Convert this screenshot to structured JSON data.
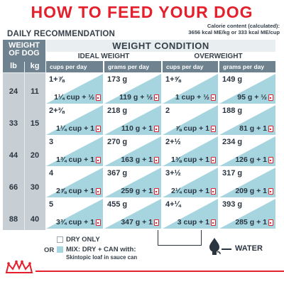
{
  "title": "HOW TO FEED YOUR DOG",
  "daily_recommendation": "DAILY RECOMMENDATION",
  "calorie": {
    "line1": "Calorie content (calculated):",
    "line2": "3656 kcal ME/kg or 333 kcal ME/cup"
  },
  "weight_panel": {
    "header_line1": "WEIGHT",
    "header_line2": "OF DOG",
    "unit_lb": "lb",
    "unit_kg": "kg",
    "rows": [
      {
        "lb": "24",
        "kg": "11"
      },
      {
        "lb": "33",
        "kg": "15"
      },
      {
        "lb": "44",
        "kg": "20"
      },
      {
        "lb": "66",
        "kg": "30"
      },
      {
        "lb": "88",
        "kg": "40"
      }
    ]
  },
  "weight_condition": "WEIGHT CONDITION",
  "groups": {
    "ideal": "IDEAL WEIGHT",
    "overweight": "OVERWEIGHT"
  },
  "column_headers": {
    "ideal_cups": "cups per day",
    "ideal_grams": "grams per day",
    "over_cups": "cups per day",
    "over_grams": "grams per day"
  },
  "rows": [
    {
      "ideal_cups_dry": "1+⅞",
      "ideal_cups_mix": "1¼ cup + ½",
      "ideal_grams_dry": "173 g",
      "ideal_grams_mix": "119 g + ½",
      "over_cups_dry": "1+⅝",
      "over_cups_mix": "1 cup + ½",
      "over_grams_dry": "149 g",
      "over_grams_mix": "95 g + ½"
    },
    {
      "ideal_cups_dry": "2+⅜",
      "ideal_cups_mix": "1¼ cup + 1",
      "ideal_grams_dry": "218 g",
      "ideal_grams_mix": "110 g + 1",
      "over_cups_dry": "2",
      "over_cups_mix": "⅞ cup + 1",
      "over_grams_dry": "188 g",
      "over_grams_mix": "81 g + 1"
    },
    {
      "ideal_cups_dry": "3",
      "ideal_cups_mix": "1¾ cup + 1",
      "ideal_grams_dry": "270 g",
      "ideal_grams_mix": "163 g + 1",
      "over_cups_dry": "2+½",
      "over_cups_mix": "1⅜ cup + 1",
      "over_grams_dry": "234 g",
      "over_grams_mix": "126 g + 1"
    },
    {
      "ideal_cups_dry": "4",
      "ideal_cups_mix": "2⅞ cup + 1",
      "ideal_grams_dry": "367 g",
      "ideal_grams_mix": "259 g + 1",
      "over_cups_dry": "3+½",
      "over_cups_mix": "2¼ cup + 1",
      "over_grams_dry": "317 g",
      "over_grams_mix": "209 g + 1"
    },
    {
      "ideal_cups_dry": "5",
      "ideal_cups_mix": "3¾ cup + 1",
      "ideal_grams_dry": "455 g",
      "ideal_grams_mix": "347 g + 1",
      "over_cups_dry": "4+¼",
      "over_cups_mix": "3 cup + 1",
      "over_grams_dry": "393 g",
      "over_grams_mix": "285 g + 1"
    }
  ],
  "legend": {
    "or": "OR",
    "dry_only": "DRY ONLY",
    "mix": "MIX: DRY + CAN with:",
    "mix_detail": "Skintopic loaf in sauce can",
    "water": "WATER"
  },
  "colors": {
    "title_red": "#e3202b",
    "slate": "#6f8290",
    "mix_blue": "#a6d5e0"
  }
}
